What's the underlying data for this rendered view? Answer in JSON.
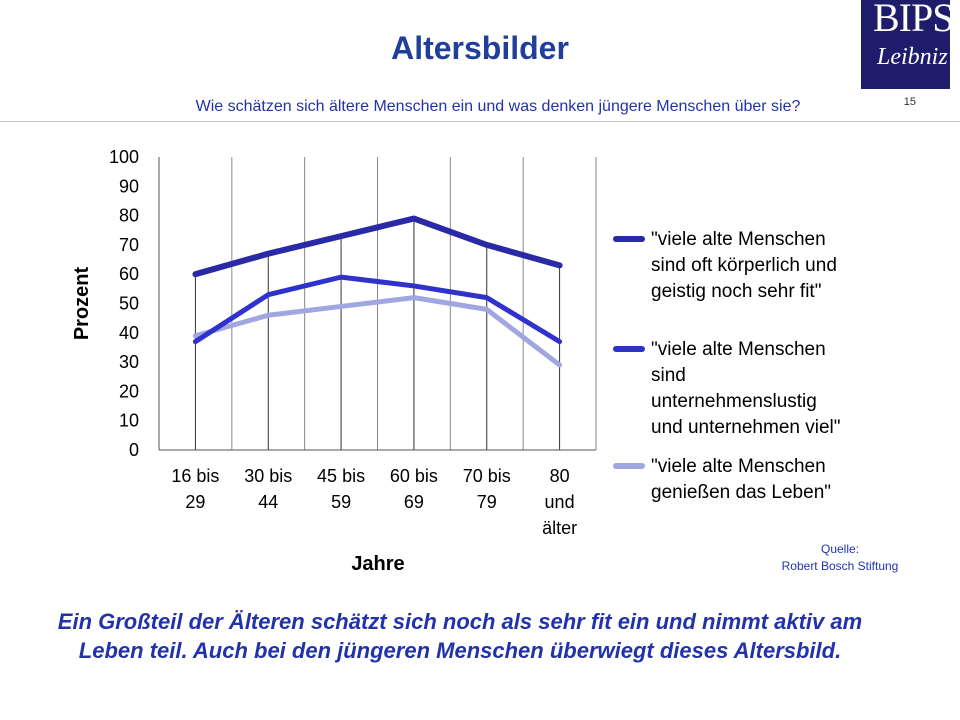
{
  "header": {
    "title": "Altersbilder",
    "subtitle": "Wie schätzen sich ältere Menschen ein und was denken jüngere Menschen über sie?",
    "page_number": "15",
    "logo_text": "BIPS",
    "logo_signature": "Leibniz"
  },
  "source": {
    "label": "Quelle:",
    "value": "Robert Bosch Stiftung"
  },
  "bottom_text": "Ein Großteil der Älteren schätzt sich noch als sehr fit ein und nimmt aktiv am Leben teil. Auch bei den jüngeren Menschen überwiegt dieses Altersbild.",
  "colors": {
    "accent": "#2233aa",
    "series_1": "#2a2aa6",
    "series_2": "#2f32cc",
    "series_3": "#9fa6e0",
    "grid": "#555555"
  },
  "chart_data": {
    "type": "line",
    "title": "",
    "xlabel": "Jahre",
    "ylabel": "Prozent",
    "ylim": [
      0,
      100
    ],
    "yticks": [
      0,
      10,
      20,
      30,
      40,
      50,
      60,
      70,
      80,
      90,
      100
    ],
    "grid": "vertical",
    "legend_position": "right",
    "categories": [
      [
        "16 bis",
        "29"
      ],
      [
        "30 bis",
        "44"
      ],
      [
        "45 bis",
        "59"
      ],
      [
        "60 bis",
        "69"
      ],
      [
        "70 bis",
        "79"
      ],
      [
        "80",
        "und",
        "älter"
      ]
    ],
    "series": [
      {
        "name": "\"viele alte Menschen sind oft körperlich und geistig noch sehr fit\"",
        "legend_lines": [
          "\"viele alte Menschen",
          "sind oft körperlich und",
          "geistig noch sehr fit\""
        ],
        "values": [
          60,
          67,
          73,
          79,
          70,
          63
        ]
      },
      {
        "name": "\"viele alte Menschen sind unternehmenslustig und unternehmen viel\"",
        "legend_lines": [
          "\"viele alte Menschen",
          "sind",
          "unternehmenslustig",
          "und unternehmen viel\""
        ],
        "values": [
          37,
          53,
          59,
          56,
          52,
          37
        ]
      },
      {
        "name": "\"viele alte Menschen genießen das Leben\"",
        "legend_lines": [
          "\"viele alte Menschen",
          "genießen das Leben\""
        ],
        "values": [
          39,
          46,
          49,
          52,
          48,
          29
        ]
      }
    ]
  }
}
